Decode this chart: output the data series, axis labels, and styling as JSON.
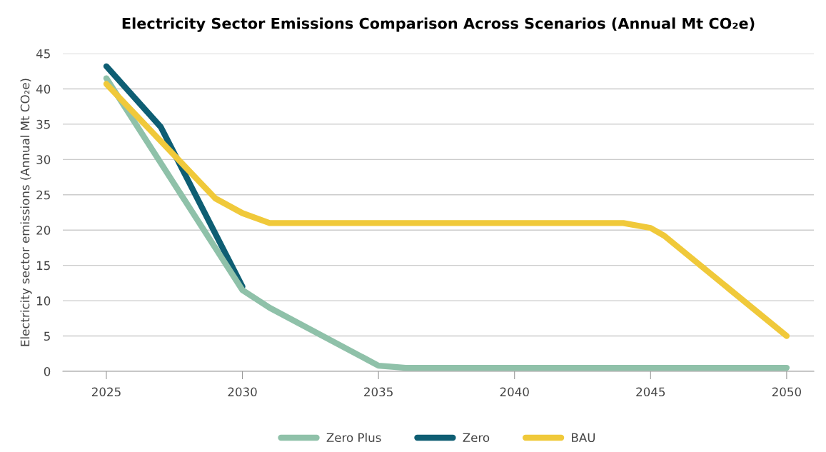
{
  "chart_data": {
    "type": "line",
    "title": "Electricity Sector Emissions Comparison Across Scenarios (Annual Mt CO₂e)",
    "ylabel": "Electricity sector emissions (Annual Mt CO₂e)",
    "xlim": [
      2023.4,
      2051
    ],
    "xticks": [
      2025,
      2030,
      2035,
      2040,
      2045,
      2050
    ],
    "ylim": [
      0,
      45
    ],
    "yticks": [
      0,
      5,
      10,
      15,
      20,
      25,
      30,
      35,
      40,
      45
    ],
    "grid": "y",
    "legend": "bottom",
    "marker": "none",
    "line_style": "solid",
    "series": [
      {
        "name": "Zero Plus",
        "color": "#8fc1a9",
        "x": [
          2025,
          2030,
          2031,
          2035,
          2036,
          2050
        ],
        "values": [
          41.5,
          11.5,
          9.0,
          0.8,
          0.5,
          0.5
        ]
      },
      {
        "name": "Zero",
        "color": "#0e5e73",
        "x": [
          2025,
          2027,
          2030
        ],
        "values": [
          43.2,
          34.6,
          12.0
        ]
      },
      {
        "name": "BAU",
        "color": "#f0c93a",
        "x": [
          2025,
          2029,
          2030,
          2031,
          2044,
          2045,
          2045.5,
          2050
        ],
        "values": [
          40.7,
          24.5,
          22.4,
          21.0,
          21.0,
          20.3,
          19.2,
          5.0
        ]
      }
    ]
  }
}
